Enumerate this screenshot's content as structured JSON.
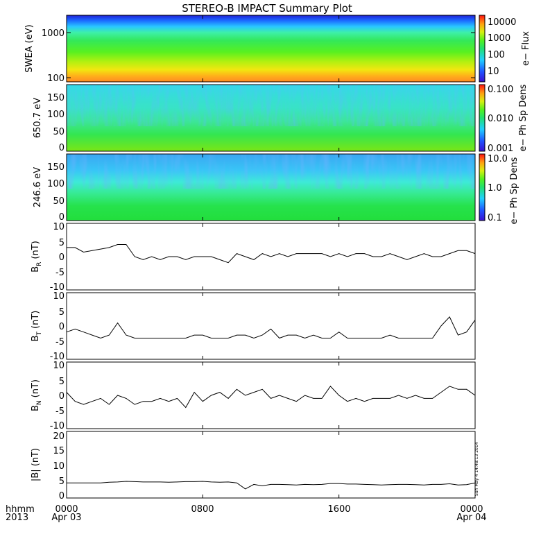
{
  "title": "STEREO-B IMPACT Summary Plot",
  "x_axis": {
    "corner_top": "hhmm",
    "corner_bottom": "2013",
    "ticks": [
      {
        "time": "0000",
        "date": "Apr 03",
        "hour": 0
      },
      {
        "time": "0800",
        "date": "",
        "hour": 8
      },
      {
        "time": "1600",
        "date": "",
        "hour": 16
      },
      {
        "time": "0000",
        "date": "Apr 04",
        "hour": 24
      }
    ],
    "range_hours": [
      0,
      24
    ]
  },
  "timestamp": "Sun May  4 14:48:13 2014",
  "colorbars": {
    "flux": {
      "label": "e− Flux",
      "ticks": [
        "10000",
        "1000",
        "100",
        "10"
      ]
    },
    "pad1": {
      "label": "e− Ph Sp Dens",
      "ticks": [
        "0.100",
        "0.010",
        "0.001"
      ]
    },
    "pad2": {
      "label": "e− Ph Sp Dens",
      "ticks": [
        "10.0",
        "1.0",
        "0.1"
      ]
    }
  },
  "chart_data": [
    {
      "type": "heatmap",
      "name": "swea",
      "ylabel": "SWEA (eV)",
      "yscale": "log",
      "ytick_labels": [
        "1000",
        "100"
      ],
      "ylim": [
        90,
        1800
      ],
      "z_label": "e− Flux",
      "z_range": [
        1,
        20000
      ],
      "description_colors": "energy-dependent flux: red/orange near 100 eV, green mid, blue above ~1100 eV"
    },
    {
      "type": "heatmap",
      "name": "pad_650",
      "ylabel": "650.7 eV",
      "ytick_labels": [
        "150",
        "100",
        "50",
        "0"
      ],
      "ylim": [
        -10,
        180
      ],
      "z_label": "e− Ph Sp Dens",
      "z_range": [
        0.001,
        0.1
      ]
    },
    {
      "type": "heatmap",
      "name": "pad_246",
      "ylabel": "246.6 eV",
      "ytick_labels": [
        "150",
        "100",
        "50",
        "0"
      ],
      "ylim": [
        -10,
        180
      ],
      "z_label": "e− Ph Sp Dens",
      "z_range": [
        0.1,
        10
      ]
    },
    {
      "type": "line",
      "name": "BR",
      "ylabel_main": "B",
      "ylabel_sub": "R",
      "ylabel_unit": "(nT)",
      "ytick_labels": [
        "10",
        "5",
        "0",
        "-5",
        "-10"
      ],
      "ylim": [
        -11,
        11
      ],
      "x": [
        0,
        0.5,
        1,
        1.5,
        2,
        2.5,
        3,
        3.5,
        4,
        4.5,
        5,
        5.5,
        6,
        6.5,
        7,
        7.5,
        8,
        8.5,
        9,
        9.5,
        10,
        10.5,
        11,
        11.5,
        12,
        12.5,
        13,
        13.5,
        14,
        14.5,
        15,
        15.5,
        16,
        16.5,
        17,
        17.5,
        18,
        18.5,
        19,
        19.5,
        20,
        20.5,
        21,
        21.5,
        22,
        22.5,
        23,
        23.5,
        24
      ],
      "y": [
        3,
        3,
        1.5,
        2,
        2.5,
        3,
        4,
        4,
        0,
        -1,
        0,
        -1,
        0,
        0,
        -1,
        0,
        0,
        0,
        -1,
        -2,
        1,
        0,
        -1,
        1,
        0,
        1,
        0,
        1,
        1,
        1,
        1,
        0,
        1,
        0,
        1,
        1,
        0,
        0,
        1,
        0,
        -1,
        0,
        1,
        0,
        0,
        1,
        2,
        2,
        1
      ]
    },
    {
      "type": "line",
      "name": "BT",
      "ylabel_main": "B",
      "ylabel_sub": "T",
      "ylabel_unit": "(nT)",
      "ytick_labels": [
        "10",
        "5",
        "0",
        "-5",
        "-10"
      ],
      "ylim": [
        -11,
        11
      ],
      "x": [
        0,
        0.5,
        1,
        1.5,
        2,
        2.5,
        3,
        3.5,
        4,
        4.5,
        5,
        5.5,
        6,
        6.5,
        7,
        7.5,
        8,
        8.5,
        9,
        9.5,
        10,
        10.5,
        11,
        11.5,
        12,
        12.5,
        13,
        13.5,
        14,
        14.5,
        15,
        15.5,
        16,
        16.5,
        17,
        17.5,
        18,
        18.5,
        19,
        19.5,
        20,
        20.5,
        21,
        21.5,
        22,
        22.5,
        23,
        23.5,
        24
      ],
      "y": [
        -2,
        -1,
        -2,
        -3,
        -4,
        -3,
        1,
        -3,
        -4,
        -4,
        -4,
        -4,
        -4,
        -4,
        -4,
        -3,
        -3,
        -4,
        -4,
        -4,
        -3,
        -3,
        -4,
        -3,
        -1,
        -4,
        -3,
        -3,
        -4,
        -3,
        -4,
        -4,
        -2,
        -4,
        -4,
        -4,
        -4,
        -4,
        -3,
        -4,
        -4,
        -4,
        -4,
        -4,
        0,
        3,
        -3,
        -2,
        2
      ]
    },
    {
      "type": "line",
      "name": "BN",
      "ylabel_main": "B",
      "ylabel_sub": "N",
      "ylabel_unit": "(nT)",
      "ytick_labels": [
        "10",
        "5",
        "0",
        "-5",
        "-10"
      ],
      "ylim": [
        -11,
        11
      ],
      "x": [
        0,
        0.5,
        1,
        1.5,
        2,
        2.5,
        3,
        3.5,
        4,
        4.5,
        5,
        5.5,
        6,
        6.5,
        7,
        7.5,
        8,
        8.5,
        9,
        9.5,
        10,
        10.5,
        11,
        11.5,
        12,
        12.5,
        13,
        13.5,
        14,
        14.5,
        15,
        15.5,
        16,
        16.5,
        17,
        17.5,
        18,
        18.5,
        19,
        19.5,
        20,
        20.5,
        21,
        21.5,
        22,
        22.5,
        23,
        23.5,
        24
      ],
      "y": [
        1,
        -2,
        -3,
        -2,
        -1,
        -3,
        0,
        -1,
        -3,
        -2,
        -2,
        -1,
        -2,
        -1,
        -4,
        1,
        -2,
        0,
        1,
        -1,
        2,
        0,
        1,
        2,
        -1,
        0,
        -1,
        -2,
        0,
        -1,
        -1,
        3,
        0,
        -2,
        -1,
        -2,
        -1,
        -1,
        -1,
        0,
        -1,
        0,
        -1,
        -1,
        1,
        3,
        2,
        2,
        0
      ]
    },
    {
      "type": "line",
      "name": "Bmag",
      "ylabel_main": "|B| (nT)",
      "ytick_labels": [
        "20",
        "15",
        "10",
        "5",
        "0"
      ],
      "ylim": [
        -1,
        21
      ],
      "x": [
        0,
        0.5,
        1,
        1.5,
        2,
        2.5,
        3,
        3.5,
        4,
        4.5,
        5,
        5.5,
        6,
        6.5,
        7,
        7.5,
        8,
        8.5,
        9,
        9.5,
        10,
        10.5,
        11,
        11.5,
        12,
        12.5,
        13,
        13.5,
        14,
        14.5,
        15,
        15.5,
        16,
        16.5,
        17,
        17.5,
        18,
        18.5,
        19,
        19.5,
        20,
        20.5,
        21,
        21.5,
        22,
        22.5,
        23,
        23.5,
        24
      ],
      "y": [
        4,
        4,
        4,
        4,
        4,
        4.2,
        4.3,
        4.5,
        4.4,
        4.3,
        4.3,
        4.3,
        4.2,
        4.3,
        4.4,
        4.4,
        4.5,
        4.3,
        4.2,
        4.3,
        4,
        2,
        3.5,
        3,
        3.5,
        3.5,
        3.4,
        3.3,
        3.5,
        3.4,
        3.5,
        3.8,
        3.8,
        3.6,
        3.6,
        3.5,
        3.4,
        3.3,
        3.4,
        3.5,
        3.5,
        3.4,
        3.3,
        3.5,
        3.5,
        3.7,
        3.3,
        3.4,
        4
      ]
    }
  ]
}
